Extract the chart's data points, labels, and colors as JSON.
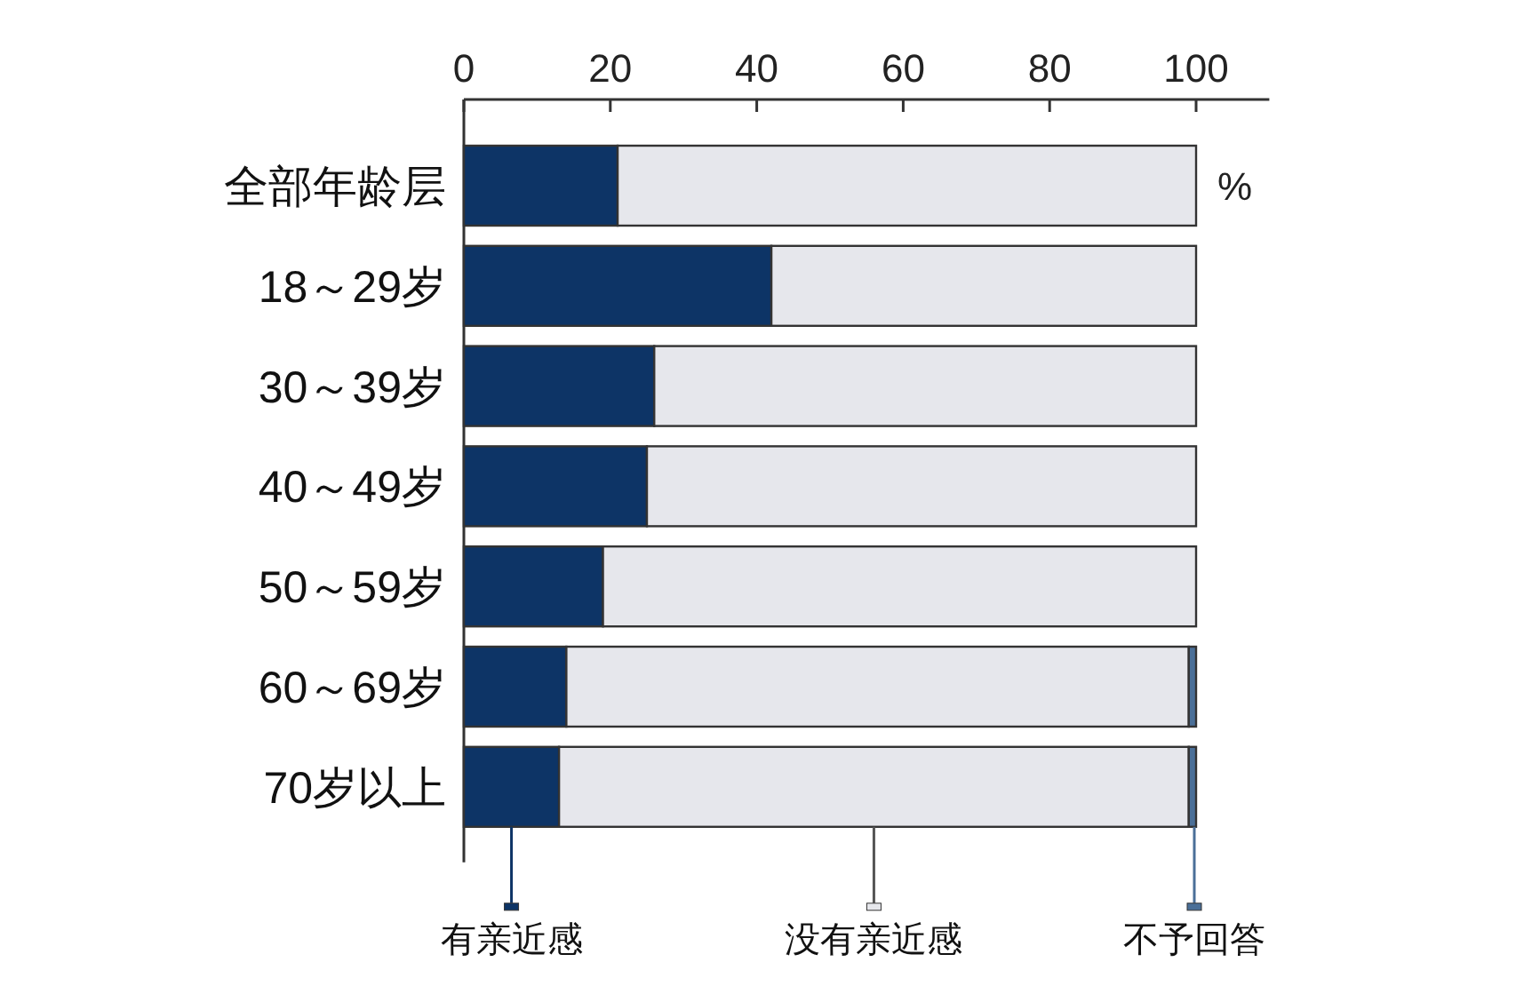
{
  "chart_data": {
    "type": "bar",
    "orientation": "horizontal",
    "stacked": true,
    "categories": [
      "全部年龄层",
      "18～29岁",
      "30～39岁",
      "40～49岁",
      "50～59岁",
      "60～69岁",
      "70岁以上"
    ],
    "series": [
      {
        "name": "有亲近感",
        "color": "#0d3466",
        "values": [
          21,
          42,
          26,
          25,
          19,
          14,
          13
        ]
      },
      {
        "name": "没有亲近感",
        "color": "#e6e7ec",
        "values": [
          79,
          58,
          74,
          75,
          81,
          85,
          86
        ]
      },
      {
        "name": "不予回答",
        "color": "#4a6f98",
        "values": [
          0,
          0,
          0,
          0,
          0,
          1,
          1
        ]
      }
    ],
    "xlim": [
      0,
      110
    ],
    "xticks": [
      0,
      20,
      40,
      60,
      80,
      100
    ],
    "annotations": [
      "%"
    ],
    "legend": "bottom",
    "grid": false
  }
}
